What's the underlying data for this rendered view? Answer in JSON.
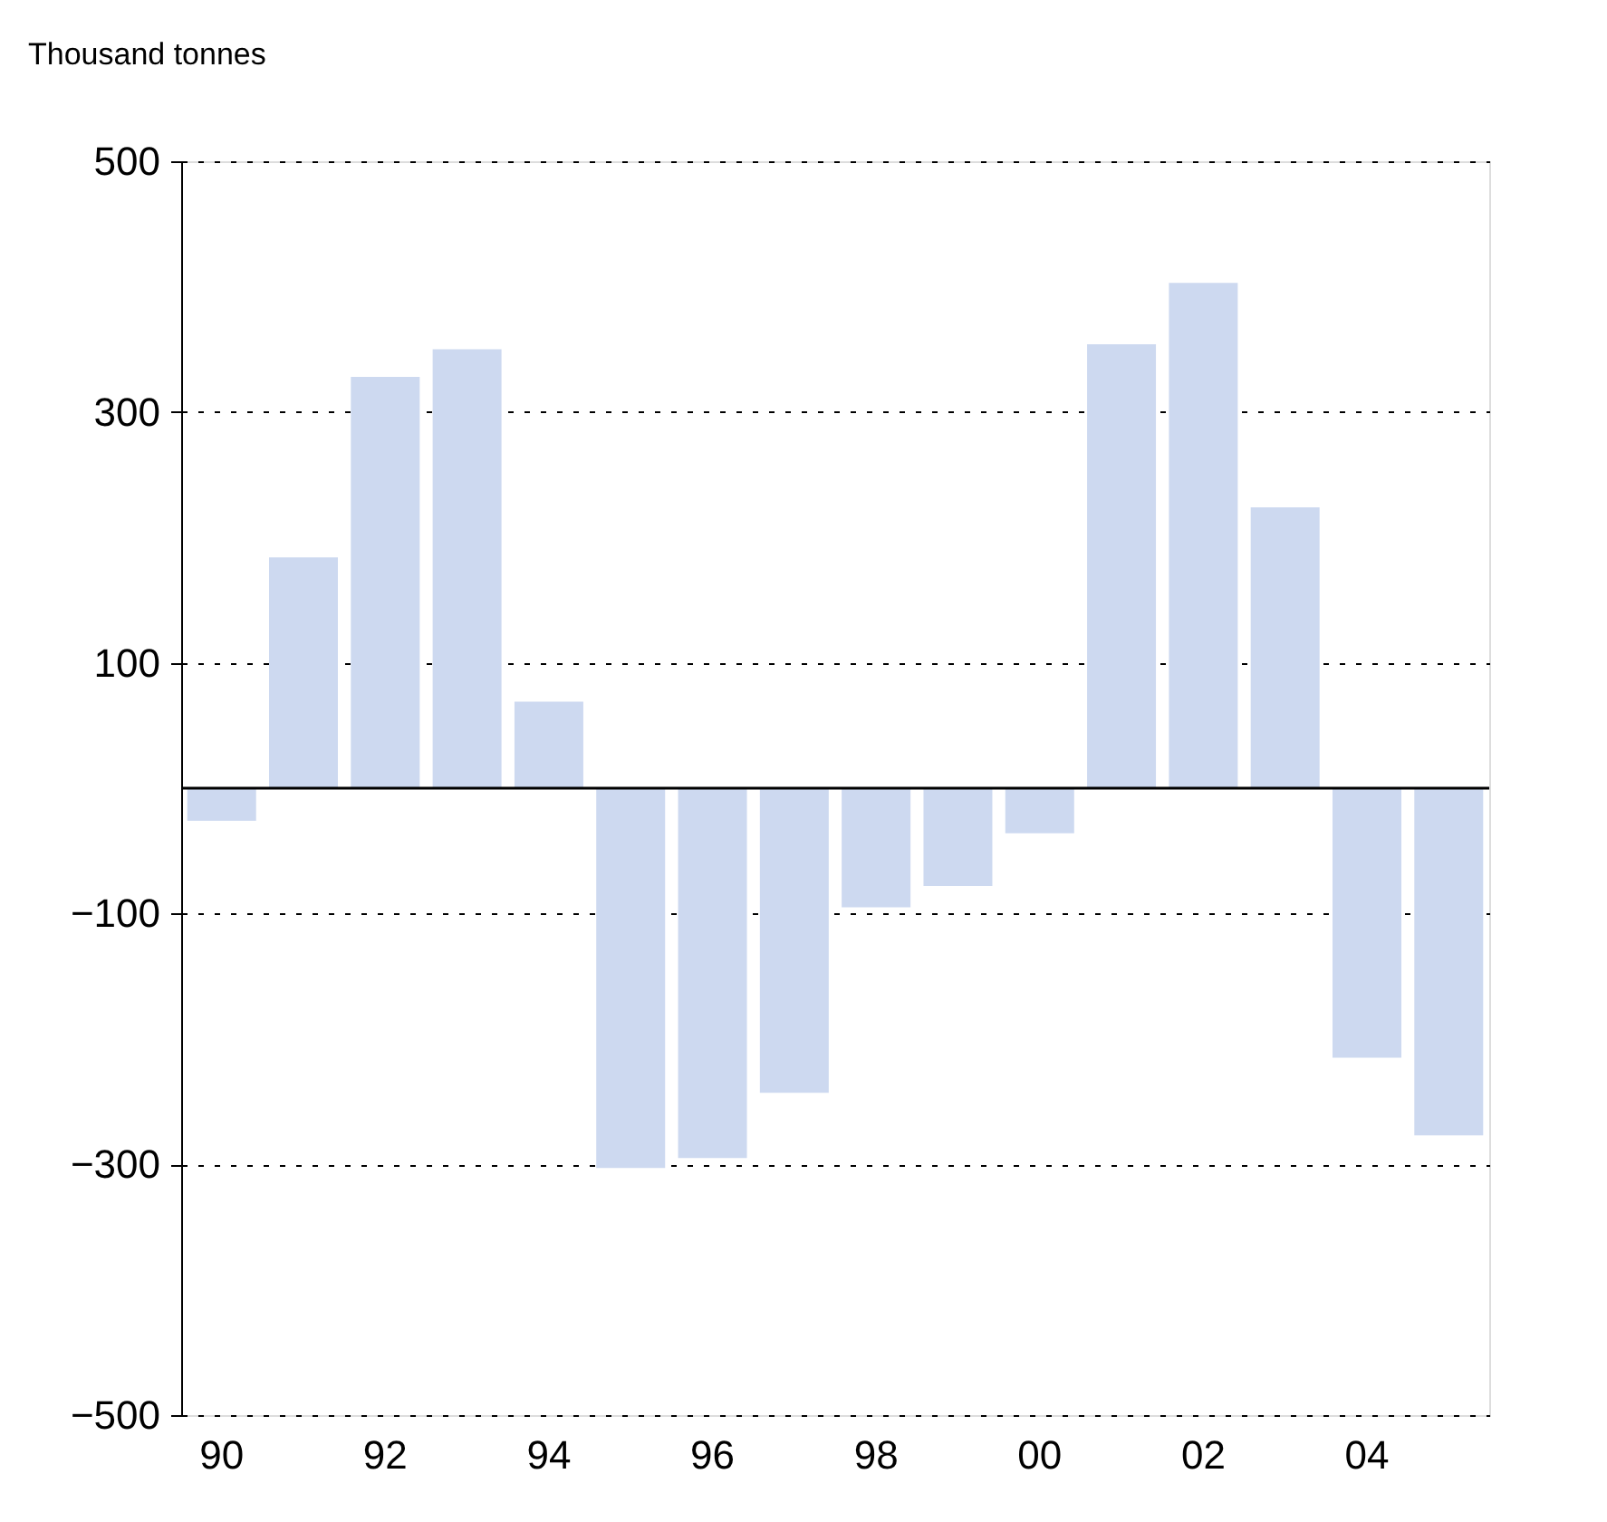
{
  "chart_data": {
    "type": "bar",
    "ylabel": "Thousand tonnes",
    "categories": [
      "90",
      null,
      "92",
      null,
      "94",
      null,
      "96",
      null,
      "98",
      null,
      "00",
      null,
      "02",
      null,
      "04",
      null
    ],
    "values": [
      -26,
      184,
      328,
      350,
      69,
      -303,
      -295,
      -243,
      -95,
      -78,
      -36,
      354,
      403,
      224,
      -215,
      -277
    ],
    "color": "#cdd9f0",
    "ylim": [
      -500,
      500
    ],
    "yticks": [
      -500,
      -300,
      -100,
      100,
      300,
      500
    ],
    "grid": "y"
  }
}
